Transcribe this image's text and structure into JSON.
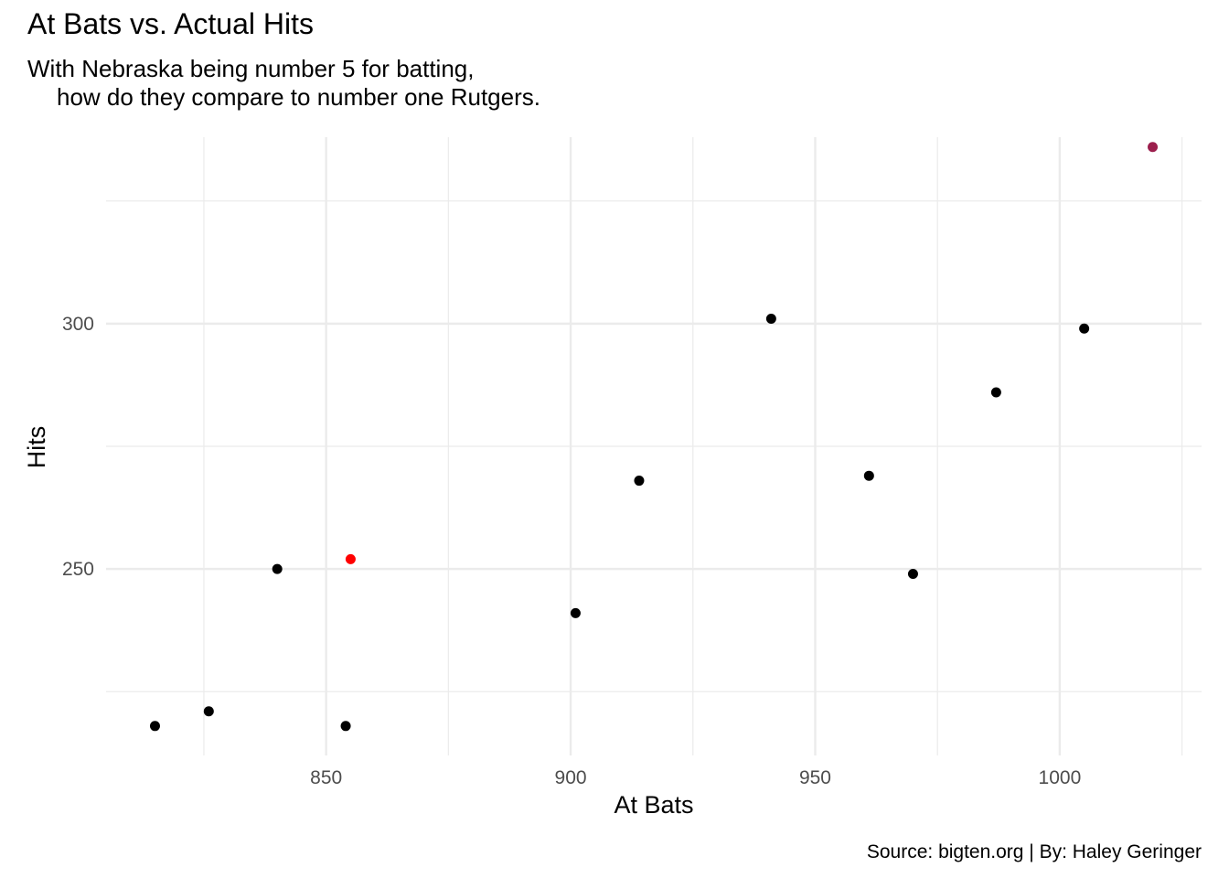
{
  "title": "At Bats vs. Actual Hits",
  "subtitle": {
    "line1": "With Nebraska being number 5 for batting,",
    "line2": "how do they compare to number one Rutgers."
  },
  "caption": "Source: bigten.org | By: Haley Geringer",
  "chart_data": {
    "type": "scatter",
    "title": "At Bats vs. Actual Hits",
    "xlabel": "At Bats",
    "ylabel": "Hits",
    "xlim": [
      805,
      1029
    ],
    "ylim": [
      212,
      338
    ],
    "x_ticks": [
      850,
      900,
      950,
      1000
    ],
    "x_minor_ticks": [
      825,
      875,
      925,
      975,
      1025
    ],
    "y_ticks": [
      250,
      300
    ],
    "y_minor_ticks": [
      225,
      275,
      325
    ],
    "x_tick_labels": [
      "850",
      "900",
      "950",
      "1000"
    ],
    "y_tick_labels": [
      "250",
      "300"
    ],
    "grid": true,
    "legend": "none",
    "colors": {
      "default": "#000000",
      "nebraska": "#ff0000",
      "rutgers": "#9c1f4d",
      "grid": "#ebebeb"
    },
    "points": [
      {
        "x": 815,
        "y": 218,
        "group": "default"
      },
      {
        "x": 826,
        "y": 221,
        "group": "default"
      },
      {
        "x": 840,
        "y": 250,
        "group": "default"
      },
      {
        "x": 854,
        "y": 218,
        "group": "default"
      },
      {
        "x": 855,
        "y": 252,
        "group": "nebraska"
      },
      {
        "x": 901,
        "y": 241,
        "group": "default"
      },
      {
        "x": 914,
        "y": 268,
        "group": "default"
      },
      {
        "x": 941,
        "y": 301,
        "group": "default"
      },
      {
        "x": 961,
        "y": 269,
        "group": "default"
      },
      {
        "x": 970,
        "y": 249,
        "group": "default"
      },
      {
        "x": 987,
        "y": 286,
        "group": "default"
      },
      {
        "x": 1005,
        "y": 299,
        "group": "default"
      },
      {
        "x": 1019,
        "y": 336,
        "group": "rutgers"
      }
    ]
  }
}
